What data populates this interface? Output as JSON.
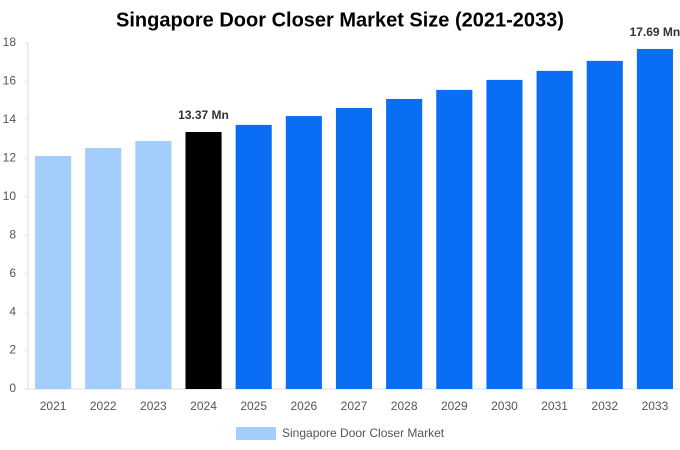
{
  "chart_data": {
    "type": "bar",
    "title": "Singapore Door Closer Market Size (2021-2033)",
    "categories": [
      "2021",
      "2022",
      "2023",
      "2024",
      "2025",
      "2026",
      "2027",
      "2028",
      "2029",
      "2030",
      "2031",
      "2032",
      "2033"
    ],
    "series": [
      {
        "name": "Singapore Door Closer Market",
        "color": "#a3cdfb",
        "colors": [
          "#a3cdfb",
          "#a3cdfb",
          "#a3cdfb",
          "#000000",
          "#0a6ef5",
          "#0a6ef5",
          "#0a6ef5",
          "#0a6ef5",
          "#0a6ef5",
          "#0a6ef5",
          "#0a6ef5",
          "#0a6ef5",
          "#0a6ef5"
        ],
        "values": [
          12.12,
          12.54,
          12.9,
          13.37,
          13.74,
          14.2,
          14.62,
          15.09,
          15.56,
          16.08,
          16.55,
          17.07,
          17.69
        ],
        "value_labels": [
          null,
          null,
          null,
          "13.37 Mn",
          null,
          null,
          null,
          null,
          null,
          null,
          null,
          null,
          "17.69 Mn"
        ]
      }
    ],
    "ylim": [
      0,
      18
    ],
    "yticks": [
      0,
      2,
      4,
      6,
      8,
      10,
      12,
      14,
      16,
      18
    ],
    "grid": false
  }
}
